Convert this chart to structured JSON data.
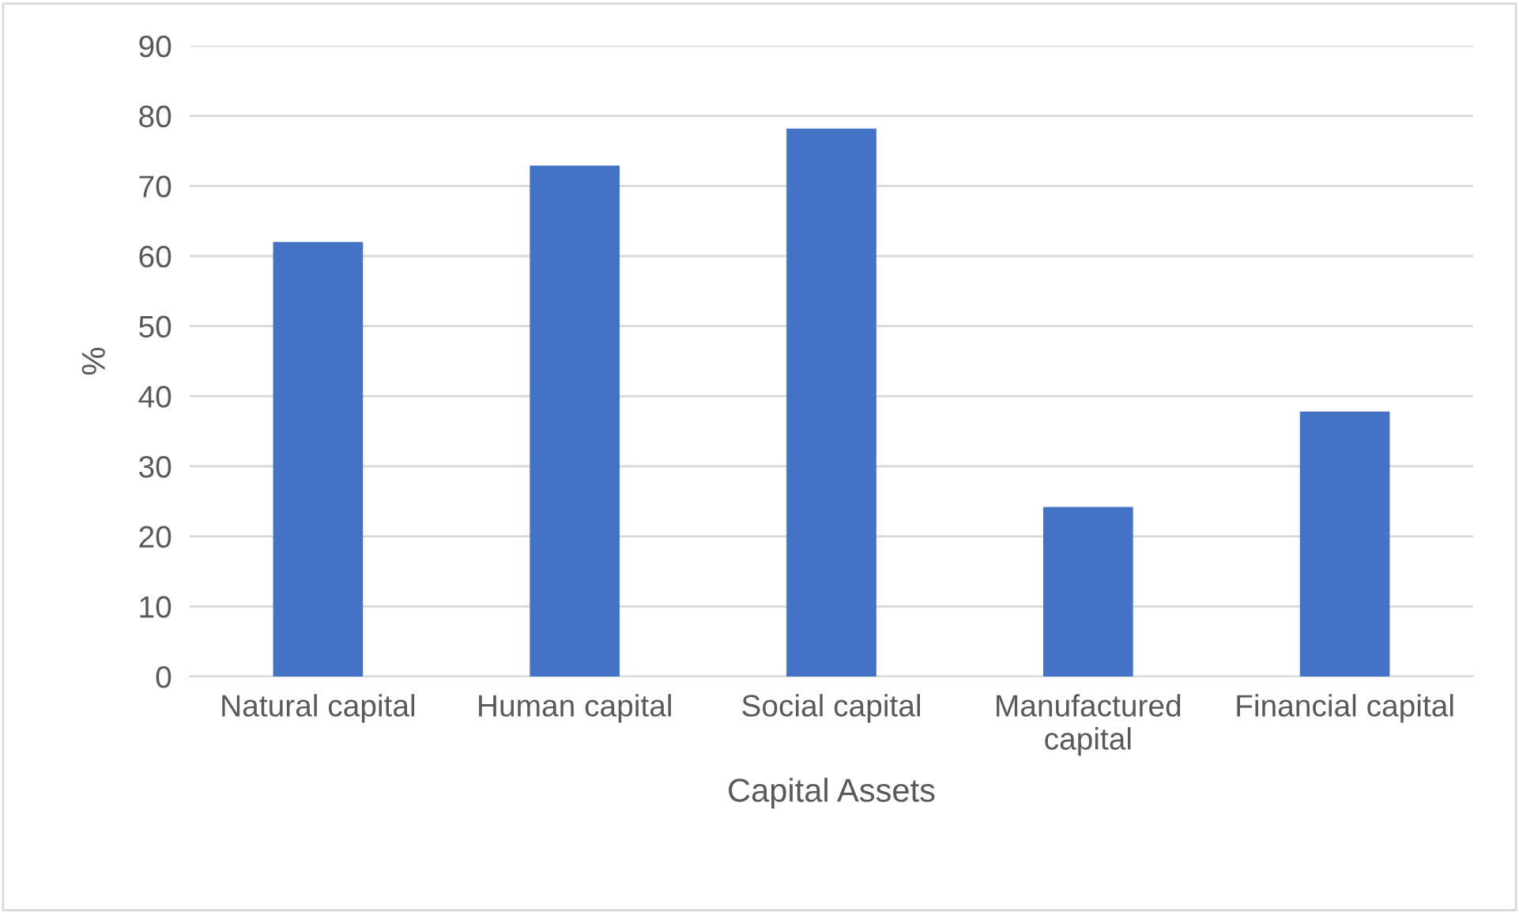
{
  "chart_data": {
    "type": "bar",
    "xlabel": "Capital Assets",
    "ylabel": "%",
    "categories": [
      "Natural capital",
      "Human capital",
      "Social capital",
      "Manufactured capital",
      "Financial capital"
    ],
    "values": [
      62.0,
      72.9,
      78.2,
      24.2,
      37.8
    ],
    "color": "#4472c4",
    "ylim": [
      0,
      90
    ],
    "yticks": [
      0,
      10,
      20,
      30,
      40,
      50,
      60,
      70,
      80,
      90
    ],
    "grid": "y",
    "legend": false
  }
}
